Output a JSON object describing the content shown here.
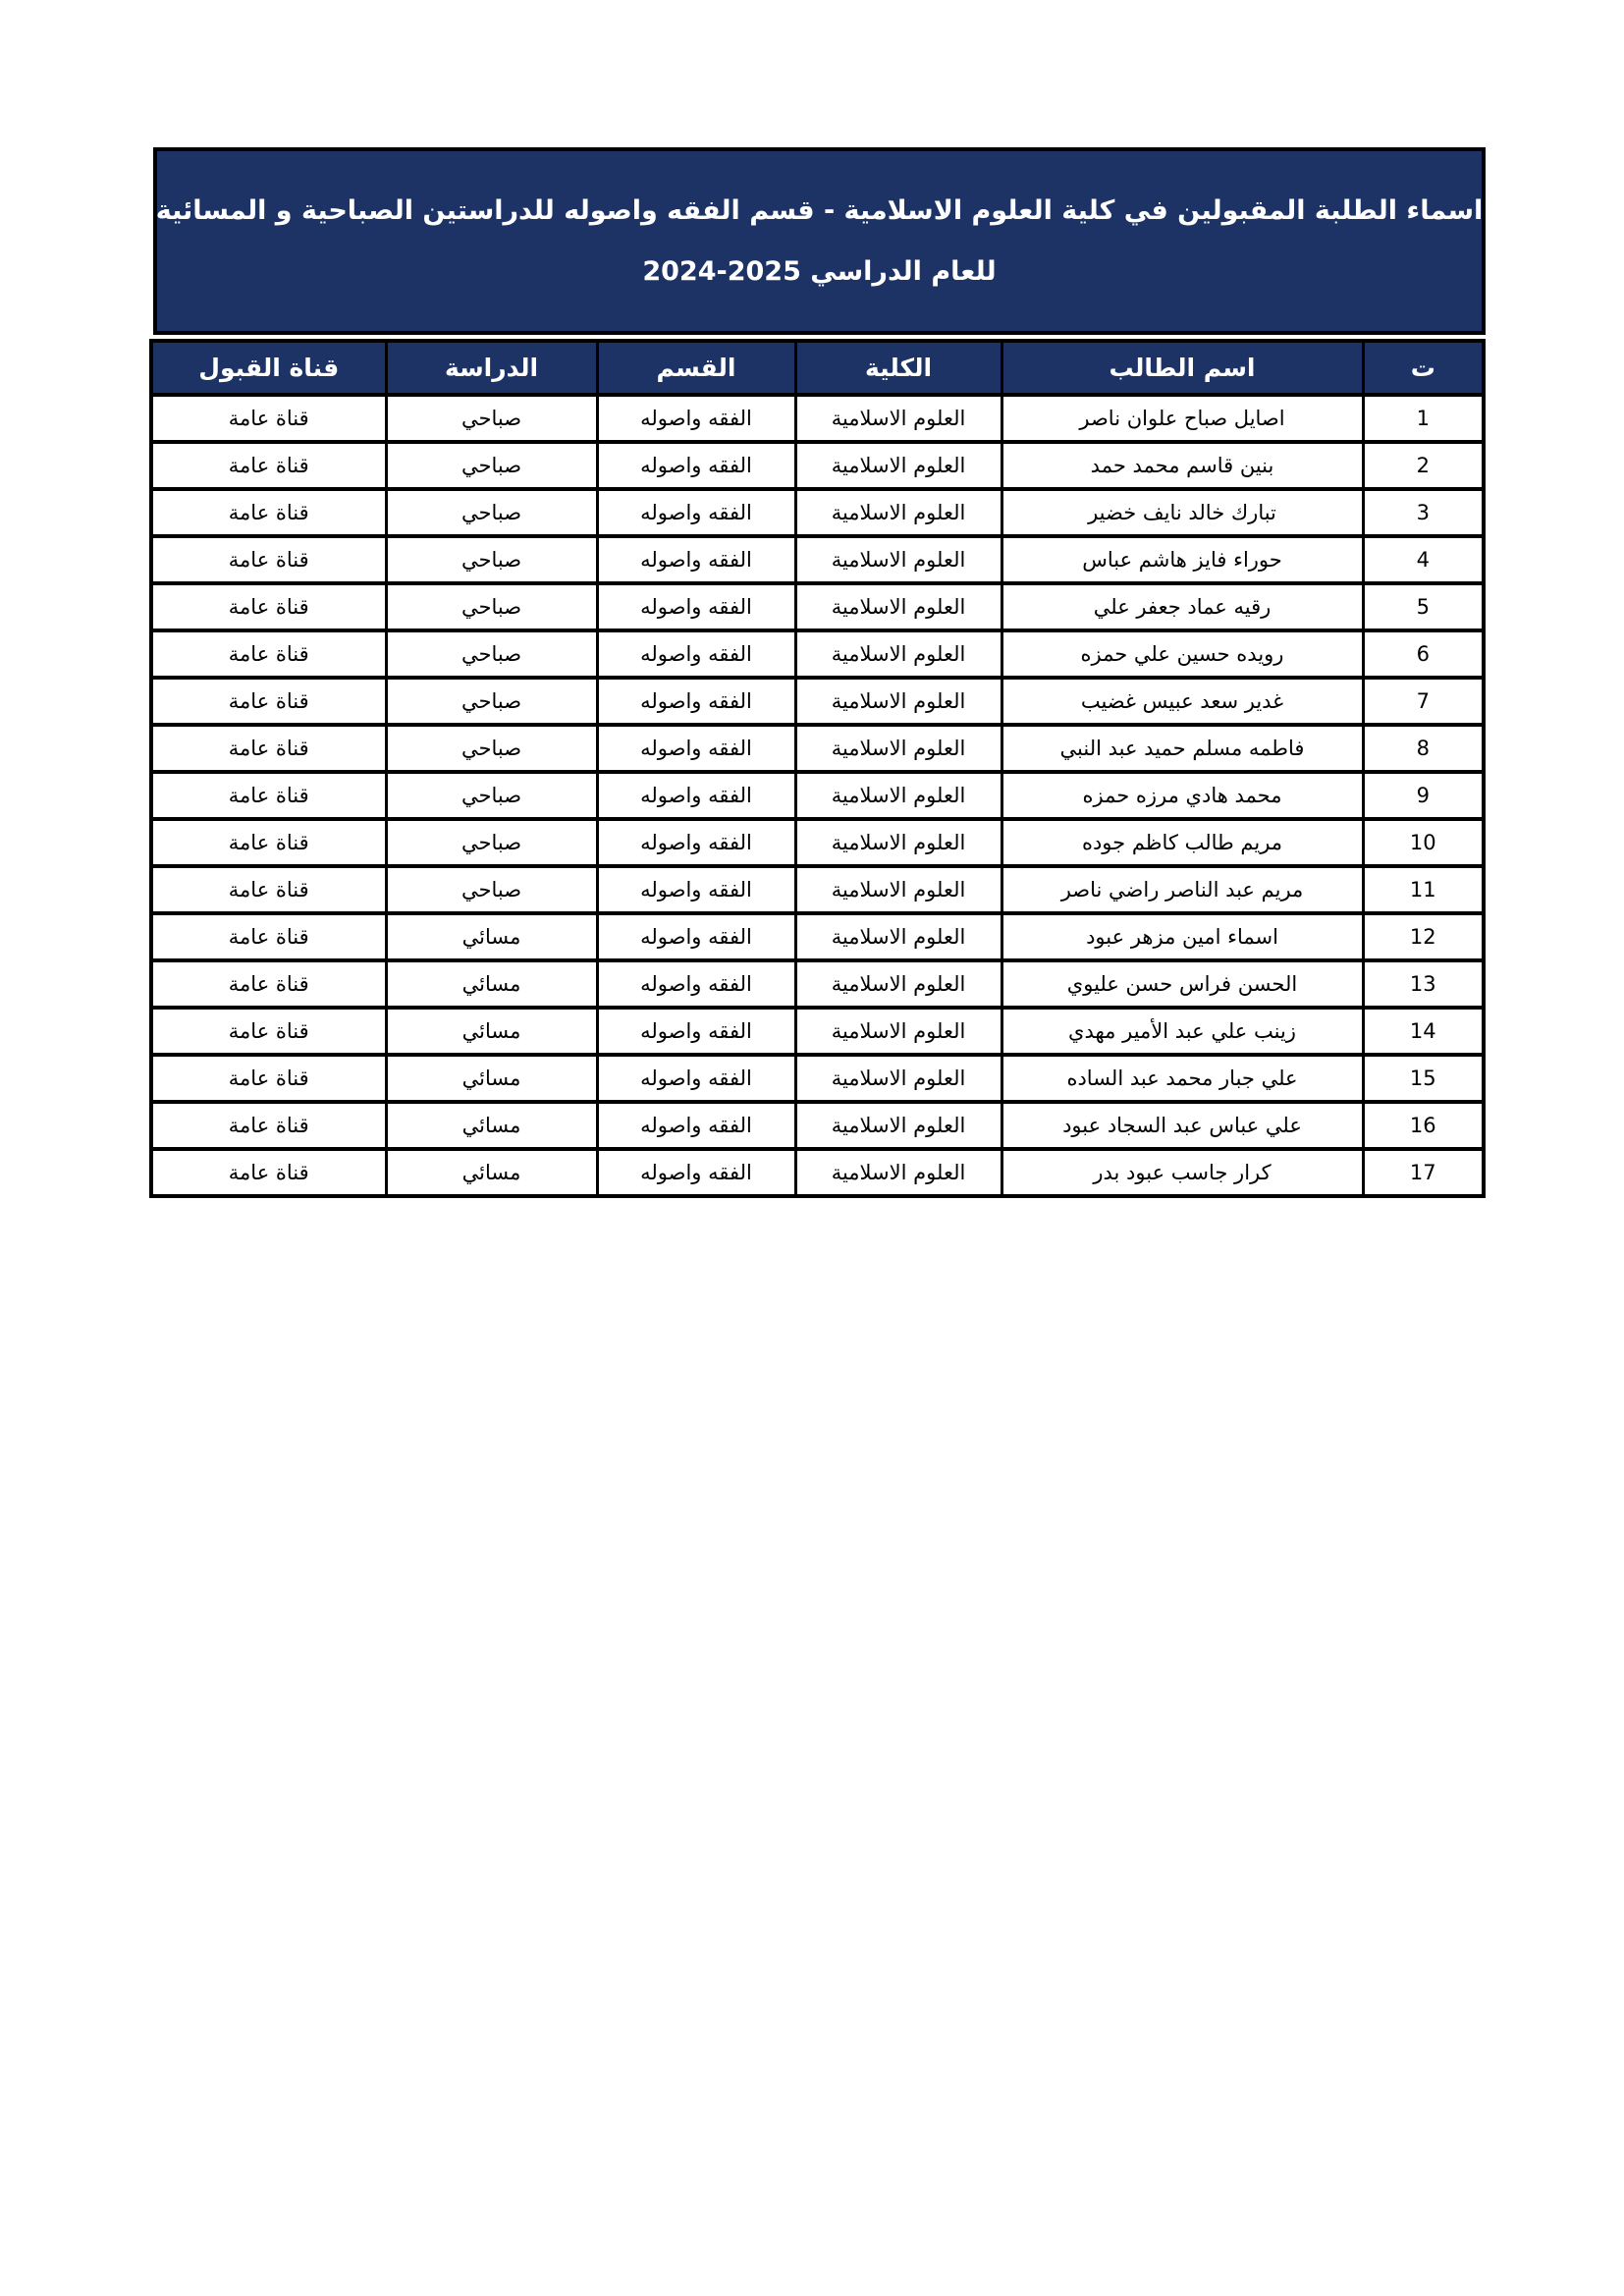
{
  "banner": {
    "bg_color": "#1d3366",
    "text_color": "#ffffff",
    "title_line1": "اسماء الطلبة المقبولين في كلية العلوم الاسلامية - قسم الفقه واصوله للدراستين الصباحية و المسائية",
    "title_line2": "للعام الدراسي 2025-2024"
  },
  "table": {
    "headers": [
      {
        "key": "no",
        "label": "ت"
      },
      {
        "key": "name",
        "label": "اسم الطالب"
      },
      {
        "key": "college",
        "label": "الكلية"
      },
      {
        "key": "dept",
        "label": "القسم"
      },
      {
        "key": "study",
        "label": "الدراسة"
      },
      {
        "key": "channel",
        "label": "قناة القبول"
      }
    ],
    "rows": [
      {
        "no": "1",
        "name": "اصايل صباح علوان ناصر",
        "college": "العلوم الاسلامية",
        "dept": "الفقه واصوله",
        "study": "صباحي",
        "channel": "قناة عامة"
      },
      {
        "no": "2",
        "name": "بنين قاسم محمد حمد",
        "college": "العلوم الاسلامية",
        "dept": "الفقه واصوله",
        "study": "صباحي",
        "channel": "قناة عامة"
      },
      {
        "no": "3",
        "name": "تبارك خالد نايف خضير",
        "college": "العلوم الاسلامية",
        "dept": "الفقه واصوله",
        "study": "صباحي",
        "channel": "قناة عامة"
      },
      {
        "no": "4",
        "name": "حوراء فايز هاشم عباس",
        "college": "العلوم الاسلامية",
        "dept": "الفقه واصوله",
        "study": "صباحي",
        "channel": "قناة عامة"
      },
      {
        "no": "5",
        "name": "رقيه عماد جعفر علي",
        "college": "العلوم الاسلامية",
        "dept": "الفقه واصوله",
        "study": "صباحي",
        "channel": "قناة عامة"
      },
      {
        "no": "6",
        "name": "رويده حسين علي حمزه",
        "college": "العلوم الاسلامية",
        "dept": "الفقه واصوله",
        "study": "صباحي",
        "channel": "قناة عامة"
      },
      {
        "no": "7",
        "name": "غدير سعد عبيس غضيب",
        "college": "العلوم الاسلامية",
        "dept": "الفقه واصوله",
        "study": "صباحي",
        "channel": "قناة عامة"
      },
      {
        "no": "8",
        "name": "فاطمه مسلم حميد عبد النبي",
        "college": "العلوم الاسلامية",
        "dept": "الفقه واصوله",
        "study": "صباحي",
        "channel": "قناة عامة"
      },
      {
        "no": "9",
        "name": "محمد هادي مرزه حمزه",
        "college": "العلوم الاسلامية",
        "dept": "الفقه واصوله",
        "study": "صباحي",
        "channel": "قناة عامة"
      },
      {
        "no": "10",
        "name": "مريم طالب كاظم جوده",
        "college": "العلوم الاسلامية",
        "dept": "الفقه واصوله",
        "study": "صباحي",
        "channel": "قناة عامة"
      },
      {
        "no": "11",
        "name": "مريم عبد الناصر راضي ناصر",
        "college": "العلوم الاسلامية",
        "dept": "الفقه واصوله",
        "study": "صباحي",
        "channel": "قناة عامة"
      },
      {
        "no": "12",
        "name": "اسماء امين مزهر عبود",
        "college": "العلوم الاسلامية",
        "dept": "الفقه واصوله",
        "study": "مسائي",
        "channel": "قناة عامة"
      },
      {
        "no": "13",
        "name": "الحسن فراس حسن عليوي",
        "college": "العلوم الاسلامية",
        "dept": "الفقه واصوله",
        "study": "مسائي",
        "channel": "قناة عامة"
      },
      {
        "no": "14",
        "name": "زينب علي عبد الأمير مهدي",
        "college": "العلوم الاسلامية",
        "dept": "الفقه واصوله",
        "study": "مسائي",
        "channel": "قناة عامة"
      },
      {
        "no": "15",
        "name": "علي جبار محمد عبد الساده",
        "college": "العلوم الاسلامية",
        "dept": "الفقه واصوله",
        "study": "مسائي",
        "channel": "قناة عامة"
      },
      {
        "no": "16",
        "name": "علي عباس عبد السجاد عبود",
        "college": "العلوم الاسلامية",
        "dept": "الفقه واصوله",
        "study": "مسائي",
        "channel": "قناة عامة"
      },
      {
        "no": "17",
        "name": "كرار جاسب عبود بدر",
        "college": "العلوم الاسلامية",
        "dept": "الفقه واصوله",
        "study": "مسائي",
        "channel": "قناة عامة"
      }
    ]
  }
}
